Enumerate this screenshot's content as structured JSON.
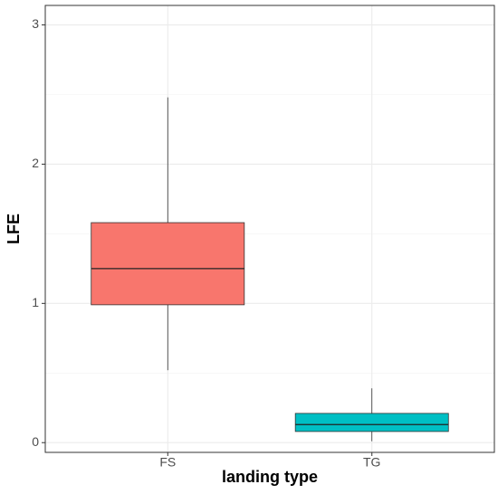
{
  "chart_data": {
    "type": "box",
    "x_label": "landing type",
    "y_label": "LFE",
    "categories": [
      "FS",
      "TG"
    ],
    "colors": [
      "#F8766D",
      "#00BFC4"
    ],
    "boxes": [
      {
        "min": 0.52,
        "q1": 0.99,
        "median": 1.25,
        "q3": 1.58,
        "max": 2.48
      },
      {
        "min": 0.01,
        "q1": 0.08,
        "median": 0.13,
        "q3": 0.21,
        "max": 0.39
      }
    ],
    "ylim": [
      -0.07,
      3.14
    ],
    "yticks": [
      0,
      1,
      2,
      3
    ],
    "minor_yticks": [
      0.5,
      1.5,
      2.5
    ],
    "grid": true
  }
}
